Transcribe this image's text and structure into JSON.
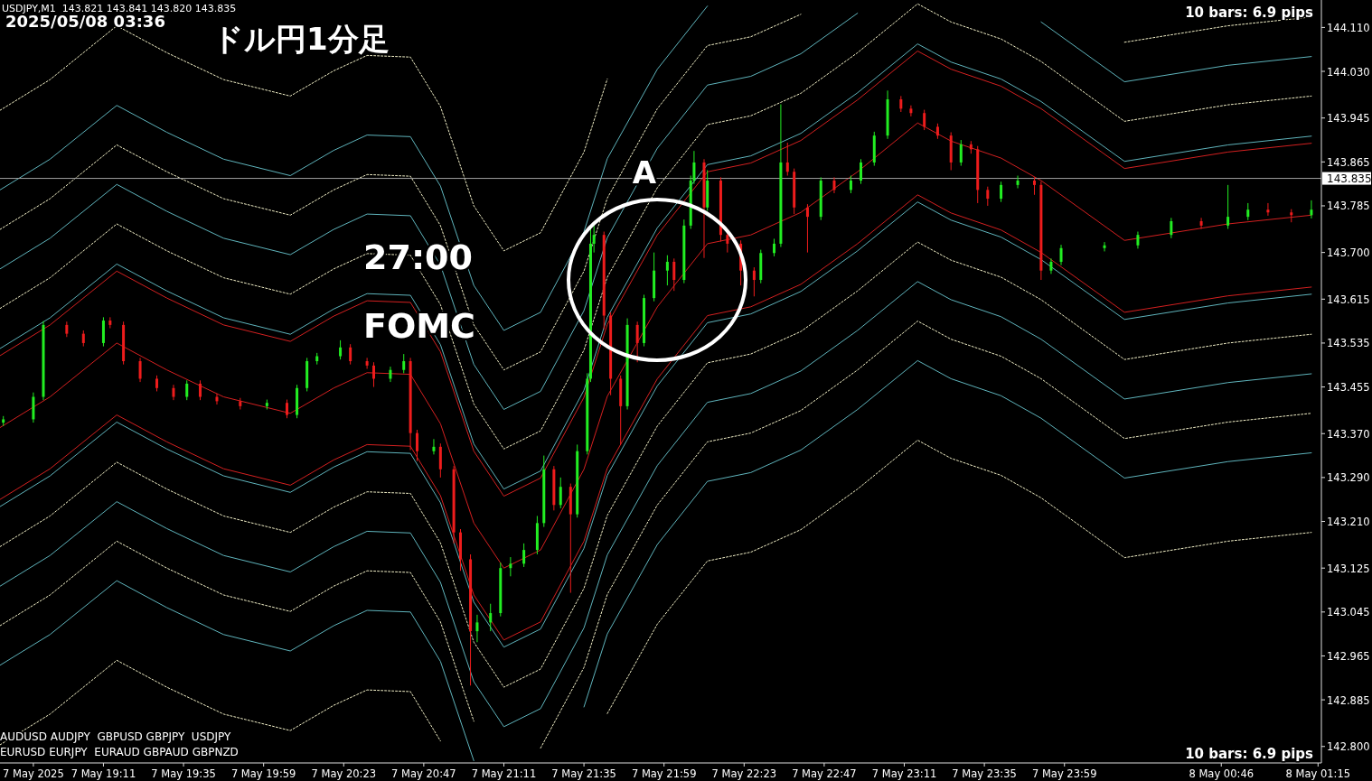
{
  "chart_data": {
    "type": "candlestick",
    "title": "ドル円1分足",
    "annotations": [
      "USDJPY,M1  143.821 143.841 143.820 143.835",
      "2025/05/08 03:36",
      "27:00",
      "FOMC",
      "A",
      "AUDUSD AUDJPY  GBPUSD GBPJPY  USDJPY",
      "EURUSD EURJPY  EURAUD GBPAUD GBPNZD",
      "10 bars: 6.9 pips",
      "10 bars: 6.9 pips"
    ],
    "xlim": [
      "2025-05-07T18:40",
      "2025-05-08T01:16"
    ],
    "ylim": [
      142.77,
      144.16
    ],
    "xticks": [
      {
        "value": "2025-05-07T18:50",
        "label": "7 May 2025"
      },
      {
        "value": "2025-05-07T19:11",
        "label": "7 May 19:11"
      },
      {
        "value": "2025-05-07T19:35",
        "label": "7 May 19:35"
      },
      {
        "value": "2025-05-07T19:59",
        "label": "7 May 19:59"
      },
      {
        "value": "2025-05-07T20:23",
        "label": "7 May 20:23"
      },
      {
        "value": "2025-05-07T20:47",
        "label": "7 May 20:47"
      },
      {
        "value": "2025-05-07T21:11",
        "label": "7 May 21:11"
      },
      {
        "value": "2025-05-07T21:35",
        "label": "7 May 21:35"
      },
      {
        "value": "2025-05-07T21:59",
        "label": "7 May 21:59"
      },
      {
        "value": "2025-05-07T22:23",
        "label": "7 May 22:23"
      },
      {
        "value": "2025-05-07T22:47",
        "label": "7 May 22:47"
      },
      {
        "value": "2025-05-07T23:11",
        "label": "7 May 23:11"
      },
      {
        "value": "2025-05-07T23:35",
        "label": "7 May 23:35"
      },
      {
        "value": "2025-05-07T23:59",
        "label": "7 May 23:59"
      },
      {
        "value": "2025-05-08T00:46",
        "label": "8 May 00:46"
      },
      {
        "value": "2025-05-08T01:15",
        "label": "8 May 01:15"
      }
    ],
    "yticks": [
      {
        "value": 142.8,
        "label": "142.800"
      },
      {
        "value": 142.885,
        "label": "142.885"
      },
      {
        "value": 142.965,
        "label": "142.965"
      },
      {
        "value": 143.045,
        "label": "143.045"
      },
      {
        "value": 143.125,
        "label": "143.125"
      },
      {
        "value": 143.21,
        "label": "143.210"
      },
      {
        "value": 143.29,
        "label": "143.290"
      },
      {
        "value": 143.37,
        "label": "143.370"
      },
      {
        "value": 143.455,
        "label": "143.455"
      },
      {
        "value": 143.535,
        "label": "143.535"
      },
      {
        "value": 143.615,
        "label": "143.615"
      },
      {
        "value": 143.7,
        "label": "143.700"
      },
      {
        "value": 143.785,
        "label": "143.785"
      },
      {
        "value": 143.865,
        "label": "143.865"
      },
      {
        "value": 143.945,
        "label": "143.945"
      },
      {
        "value": 144.03,
        "label": "144.030"
      },
      {
        "value": 144.11,
        "label": "144.110"
      }
    ],
    "ref_lines": [
      {
        "axis": "y",
        "value": 143.835,
        "label": "143.835",
        "color": "#a0a0a0"
      }
    ],
    "x": [
      "2025-05-07T18:41",
      "2025-05-07T18:50",
      "2025-05-07T18:53",
      "2025-05-07T19:00",
      "2025-05-07T19:05",
      "2025-05-07T19:11",
      "2025-05-07T19:13",
      "2025-05-07T19:17",
      "2025-05-07T19:22",
      "2025-05-07T19:27",
      "2025-05-07T19:32",
      "2025-05-07T19:36",
      "2025-05-07T19:40",
      "2025-05-07T19:45",
      "2025-05-07T19:52",
      "2025-05-07T20:00",
      "2025-05-07T20:06",
      "2025-05-07T20:09",
      "2025-05-07T20:12",
      "2025-05-07T20:15",
      "2025-05-07T20:22",
      "2025-05-07T20:25",
      "2025-05-07T20:30",
      "2025-05-07T20:32",
      "2025-05-07T20:37",
      "2025-05-07T20:41",
      "2025-05-07T20:43",
      "2025-05-07T20:45",
      "2025-05-07T20:50",
      "2025-05-07T20:52",
      "2025-05-07T20:56",
      "2025-05-07T20:58",
      "2025-05-07T21:01",
      "2025-05-07T21:03",
      "2025-05-07T21:07",
      "2025-05-07T21:10",
      "2025-05-07T21:13",
      "2025-05-07T21:17",
      "2025-05-07T21:21",
      "2025-05-07T21:23",
      "2025-05-07T21:26",
      "2025-05-07T21:28",
      "2025-05-07T21:31",
      "2025-05-07T21:33",
      "2025-05-07T21:36",
      "2025-05-07T21:37",
      "2025-05-07T21:38",
      "2025-05-07T21:41",
      "2025-05-07T21:43",
      "2025-05-07T21:46",
      "2025-05-07T21:48",
      "2025-05-07T21:51",
      "2025-05-07T21:53",
      "2025-05-07T21:56",
      "2025-05-07T22:00",
      "2025-05-07T22:02",
      "2025-05-07T22:05",
      "2025-05-07T22:07",
      "2025-05-07T22:08",
      "2025-05-07T22:11",
      "2025-05-07T22:12",
      "2025-05-07T22:16",
      "2025-05-07T22:18",
      "2025-05-07T22:22",
      "2025-05-07T22:26",
      "2025-05-07T22:28",
      "2025-05-07T22:32",
      "2025-05-07T22:34",
      "2025-05-07T22:36",
      "2025-05-07T22:38",
      "2025-05-07T22:42",
      "2025-05-07T22:46",
      "2025-05-07T22:50",
      "2025-05-07T22:55",
      "2025-05-07T22:58",
      "2025-05-07T23:02",
      "2025-05-07T23:06",
      "2025-05-07T23:10",
      "2025-05-07T23:13",
      "2025-05-07T23:17",
      "2025-05-07T23:21",
      "2025-05-07T23:25",
      "2025-05-07T23:28",
      "2025-05-07T23:31",
      "2025-05-07T23:33",
      "2025-05-07T23:36",
      "2025-05-07T23:40",
      "2025-05-07T23:45",
      "2025-05-07T23:50",
      "2025-05-07T23:52",
      "2025-05-07T23:55",
      "2025-05-07T23:58",
      "2025-05-08T00:11",
      "2025-05-08T00:21",
      "2025-05-08T00:31",
      "2025-05-08T00:40",
      "2025-05-08T00:48",
      "2025-05-08T00:54",
      "2025-05-08T01:00",
      "2025-05-08T01:07",
      "2025-05-08T01:13"
    ],
    "colors": [
      "#22ee22",
      "#22ee22",
      "#22ee22",
      "#ee1c1c",
      "#ee1c1c",
      "#22ee22",
      "#ee1c1c",
      "#ee1c1c",
      "#ee1c1c",
      "#ee1c1c",
      "#ee1c1c",
      "#22ee22",
      "#ee1c1c",
      "#ee1c1c",
      "#ee1c1c",
      "#22ee22",
      "#ee1c1c",
      "#22ee22",
      "#22ee22",
      "#22ee22",
      "#22ee22",
      "#ee1c1c",
      "#ee1c1c",
      "#ee1c1c",
      "#22ee22",
      "#22ee22",
      "#ee1c1c",
      "#ee1c1c",
      "#22ee22",
      "#ee1c1c",
      "#ee1c1c",
      "#ee1c1c",
      "#ee1c1c",
      "#22ee22",
      "#22ee22",
      "#22ee22",
      "#22ee22",
      "#22ee22",
      "#22ee22",
      "#22ee22",
      "#ee1c1c",
      "#22ee22",
      "#ee1c1c",
      "#22ee22",
      "#22ee22",
      "#22ee22",
      "#22ee22",
      "#ee1c1c",
      "#ee1c1c",
      "#ee1c1c",
      "#22ee22",
      "#ee1c1c",
      "#22ee22",
      "#22ee22",
      "#22ee22",
      "#ee1c1c",
      "#22ee22",
      "#22ee22",
      "#22ee22",
      "#ee1c1c",
      "#22ee22",
      "#ee1c1c",
      "#ee1c1c",
      "#ee1c1c",
      "#ee1c1c",
      "#22ee22",
      "#22ee22",
      "#22ee22",
      "#ee1c1c",
      "#ee1c1c",
      "#ee1c1c",
      "#22ee22",
      "#ee1c1c",
      "#22ee22",
      "#22ee22",
      "#22ee22",
      "#22ee22",
      "#ee1c1c",
      "#ee1c1c",
      "#ee1c1c",
      "#ee1c1c",
      "#ee1c1c",
      "#22ee22",
      "#ee1c1c",
      "#ee1c1c",
      "#ee1c1c",
      "#22ee22",
      "#22ee22",
      "#ee1c1c",
      "#ee1c1c",
      "#22ee22",
      "#22ee22",
      "#22ee22",
      "#22ee22",
      "#22ee22",
      "#ee1c1c",
      "#22ee22",
      "#22ee22",
      "#ee1c1c",
      "#ee1c1c",
      "#22ee22"
    ],
    "ohlc": [
      [
        143.39,
        143.402,
        143.384,
        143.396
      ],
      [
        143.396,
        143.445,
        143.39,
        143.437
      ],
      [
        143.437,
        143.575,
        143.431,
        143.568
      ],
      [
        143.568,
        143.574,
        143.546,
        143.552
      ],
      [
        143.552,
        143.558,
        143.529,
        143.535
      ],
      [
        143.535,
        143.582,
        143.529,
        143.576
      ],
      [
        143.576,
        143.582,
        143.562,
        143.568
      ],
      [
        143.568,
        143.574,
        143.496,
        143.502
      ],
      [
        143.502,
        143.508,
        143.464,
        143.47
      ],
      [
        143.47,
        143.476,
        143.447,
        143.453
      ],
      [
        143.453,
        143.459,
        143.431,
        143.437
      ],
      [
        143.437,
        143.467,
        143.431,
        143.461
      ],
      [
        143.461,
        143.467,
        143.431,
        143.437
      ],
      [
        143.437,
        143.443,
        143.423,
        143.429
      ],
      [
        143.429,
        143.435,
        143.414,
        143.42
      ],
      [
        143.42,
        143.432,
        143.414,
        143.426
      ],
      [
        143.426,
        143.432,
        143.398,
        143.404
      ],
      [
        143.404,
        143.459,
        143.398,
        143.453
      ],
      [
        143.453,
        143.508,
        143.447,
        143.502
      ],
      [
        143.502,
        143.517,
        143.496,
        143.511
      ],
      [
        143.511,
        143.54,
        143.505,
        143.527
      ],
      [
        143.527,
        143.533,
        143.496,
        143.502
      ],
      [
        143.502,
        143.508,
        143.488,
        143.494
      ],
      [
        143.494,
        143.5,
        143.455,
        143.47
      ],
      [
        143.47,
        143.492,
        143.464,
        143.486
      ],
      [
        143.486,
        143.515,
        143.48,
        143.502
      ],
      [
        143.502,
        143.508,
        143.34,
        143.371
      ],
      [
        143.371,
        143.377,
        143.32,
        143.338
      ],
      [
        143.338,
        143.36,
        143.332,
        143.346
      ],
      [
        143.346,
        143.352,
        143.29,
        143.305
      ],
      [
        143.305,
        143.311,
        143.17,
        143.19
      ],
      [
        143.19,
        143.196,
        143.12,
        143.141
      ],
      [
        143.141,
        143.15,
        142.911,
        143.01
      ],
      [
        143.01,
        143.04,
        142.99,
        143.026
      ],
      [
        143.026,
        143.06,
        143.01,
        143.043
      ],
      [
        143.043,
        143.135,
        143.037,
        143.125
      ],
      [
        143.125,
        143.145,
        143.11,
        143.133
      ],
      [
        143.133,
        143.17,
        143.127,
        143.158
      ],
      [
        143.158,
        143.22,
        143.15,
        143.207
      ],
      [
        143.207,
        143.33,
        143.2,
        143.305
      ],
      [
        143.305,
        143.311,
        143.23,
        143.24
      ],
      [
        143.24,
        143.29,
        143.234,
        143.273
      ],
      [
        143.273,
        143.279,
        143.08,
        143.223
      ],
      [
        143.223,
        143.35,
        143.217,
        143.338
      ],
      [
        143.338,
        143.48,
        143.332,
        143.47
      ],
      [
        143.47,
        143.745,
        143.464,
        143.716
      ],
      [
        143.716,
        143.75,
        143.7,
        143.732
      ],
      [
        143.732,
        143.738,
        143.56,
        143.585
      ],
      [
        143.585,
        143.591,
        143.44,
        143.47
      ],
      [
        143.47,
        143.476,
        143.35,
        143.42
      ],
      [
        143.42,
        143.58,
        143.414,
        143.568
      ],
      [
        143.568,
        143.574,
        143.5,
        143.535
      ],
      [
        143.535,
        143.623,
        143.529,
        143.617
      ],
      [
        143.617,
        143.7,
        143.611,
        143.667
      ],
      [
        143.667,
        143.695,
        143.64,
        143.683
      ],
      [
        143.683,
        143.689,
        143.63,
        143.65
      ],
      [
        143.65,
        143.76,
        143.644,
        143.749
      ],
      [
        143.749,
        143.84,
        143.743,
        143.831
      ],
      [
        143.831,
        143.885,
        143.825,
        143.864
      ],
      [
        143.864,
        143.87,
        143.69,
        143.782
      ],
      [
        143.782,
        143.85,
        143.776,
        143.831
      ],
      [
        143.831,
        143.837,
        143.72,
        143.732
      ],
      [
        143.732,
        143.738,
        143.7,
        143.716
      ],
      [
        143.716,
        143.722,
        143.64,
        143.667
      ],
      [
        143.667,
        143.673,
        143.62,
        143.65
      ],
      [
        143.65,
        143.705,
        143.644,
        143.699
      ],
      [
        143.699,
        143.725,
        143.693,
        143.716
      ],
      [
        143.716,
        143.97,
        143.71,
        143.864
      ],
      [
        143.864,
        143.9,
        143.84,
        143.847
      ],
      [
        143.847,
        143.853,
        143.77,
        143.782
      ],
      [
        143.782,
        143.788,
        143.7,
        143.765
      ],
      [
        143.765,
        143.837,
        143.759,
        143.831
      ],
      [
        143.831,
        143.837,
        143.808,
        143.814
      ],
      [
        143.814,
        143.84,
        143.808,
        143.831
      ],
      [
        143.831,
        143.87,
        143.825,
        143.864
      ],
      [
        143.864,
        143.92,
        143.858,
        143.913
      ],
      [
        143.913,
        143.995,
        143.907,
        143.979
      ],
      [
        143.979,
        143.985,
        143.956,
        143.962
      ],
      [
        143.962,
        143.968,
        143.948,
        143.954
      ],
      [
        143.954,
        143.96,
        143.923,
        143.929
      ],
      [
        143.929,
        143.935,
        143.907,
        143.913
      ],
      [
        143.913,
        143.919,
        143.85,
        143.864
      ],
      [
        143.864,
        143.905,
        143.858,
        143.897
      ],
      [
        143.897,
        143.903,
        143.88,
        143.888
      ],
      [
        143.888,
        143.894,
        143.79,
        143.814
      ],
      [
        143.814,
        143.82,
        143.785,
        143.798
      ],
      [
        143.798,
        143.829,
        143.792,
        143.823
      ],
      [
        143.823,
        143.84,
        143.817,
        143.831
      ],
      [
        143.831,
        143.837,
        143.805,
        143.823
      ],
      [
        143.823,
        143.829,
        143.65,
        143.667
      ],
      [
        143.667,
        143.689,
        143.661,
        143.683
      ],
      [
        143.683,
        143.714,
        143.677,
        143.708
      ],
      [
        143.708,
        143.719,
        143.702,
        143.713
      ],
      [
        143.713,
        143.738,
        143.707,
        143.732
      ],
      [
        143.732,
        143.763,
        143.726,
        143.757
      ],
      [
        143.757,
        143.763,
        143.743,
        143.749
      ],
      [
        143.749,
        143.823,
        143.743,
        143.765
      ],
      [
        143.765,
        143.79,
        143.759,
        143.778
      ],
      [
        143.778,
        143.79,
        143.767,
        143.773
      ],
      [
        143.773,
        143.779,
        143.755,
        143.768
      ],
      [
        143.768,
        143.795,
        143.762,
        143.778
      ]
    ],
    "series": [
      {
        "type": "line",
        "color": "#d42020",
        "line_style": "solid",
        "x": [
          "2025-05-07T18:40",
          "2025-05-07T18:55",
          "2025-05-07T19:15",
          "2025-05-07T19:30",
          "2025-05-07T19:47",
          "2025-05-07T20:07",
          "2025-05-07T20:20",
          "2025-05-07T20:30",
          "2025-05-07T20:43",
          "2025-05-07T20:52",
          "2025-05-07T21:02",
          "2025-05-07T21:11",
          "2025-05-07T21:22",
          "2025-05-07T21:35",
          "2025-05-07T21:42",
          "2025-05-07T21:57",
          "2025-05-07T22:12",
          "2025-05-07T22:25",
          "2025-05-07T22:40",
          "2025-05-07T22:57",
          "2025-05-07T23:15",
          "2025-05-07T23:25",
          "2025-05-07T23:40",
          "2025-05-07T23:52",
          "2025-05-08T00:17",
          "2025-05-08T00:48",
          "2025-05-08T01:13"
        ],
        "values": [
          143.381,
          143.437,
          143.535,
          143.486,
          143.437,
          143.407,
          143.453,
          143.481,
          143.478,
          143.388,
          143.207,
          143.125,
          143.158,
          143.305,
          143.438,
          143.601,
          143.716,
          143.732,
          143.773,
          143.847,
          143.936,
          143.903,
          143.872,
          143.831,
          143.722,
          143.752,
          143.768
        ]
      },
      {
        "type": "line",
        "color": "#d42020",
        "line_style": "solid",
        "x": [
          "2025-05-07T18:40",
          "2025-05-07T18:55",
          "2025-05-07T19:15",
          "2025-05-07T19:30",
          "2025-05-07T19:47",
          "2025-05-07T20:07",
          "2025-05-07T20:20",
          "2025-05-07T20:30",
          "2025-05-07T20:43",
          "2025-05-07T20:52",
          "2025-05-07T21:02",
          "2025-05-07T21:11",
          "2025-05-07T21:22",
          "2025-05-07T21:35",
          "2025-05-07T21:42",
          "2025-05-07T21:57",
          "2025-05-07T22:12",
          "2025-05-07T22:25",
          "2025-05-07T22:40",
          "2025-05-07T22:57",
          "2025-05-07T23:15",
          "2025-05-07T23:25",
          "2025-05-07T23:40",
          "2025-05-07T23:52",
          "2025-05-08T00:17",
          "2025-05-08T00:48",
          "2025-05-08T01:13"
        ],
        "values": [
          143.512,
          143.568,
          143.666,
          143.617,
          143.568,
          143.538,
          143.584,
          143.612,
          143.609,
          143.519,
          143.338,
          143.256,
          143.289,
          143.436,
          143.569,
          143.732,
          143.847,
          143.863,
          143.904,
          143.978,
          144.067,
          144.034,
          144.003,
          143.962,
          143.853,
          143.883,
          143.899
        ]
      },
      {
        "type": "line",
        "color": "#d42020",
        "line_style": "solid",
        "x": [
          "2025-05-07T18:40",
          "2025-05-07T18:55",
          "2025-05-07T19:15",
          "2025-05-07T19:30",
          "2025-05-07T19:47",
          "2025-05-07T20:07",
          "2025-05-07T20:20",
          "2025-05-07T20:30",
          "2025-05-07T20:43",
          "2025-05-07T20:52",
          "2025-05-07T21:02",
          "2025-05-07T21:11",
          "2025-05-07T21:22",
          "2025-05-07T21:35",
          "2025-05-07T21:42",
          "2025-05-07T21:57",
          "2025-05-07T22:12",
          "2025-05-07T22:25",
          "2025-05-07T22:40",
          "2025-05-07T22:57",
          "2025-05-07T23:15",
          "2025-05-07T23:25",
          "2025-05-07T23:40",
          "2025-05-07T23:52",
          "2025-05-08T00:17",
          "2025-05-08T00:48",
          "2025-05-08T01:13"
        ],
        "values": [
          143.25,
          143.306,
          143.404,
          143.355,
          143.306,
          143.276,
          143.322,
          143.35,
          143.347,
          143.257,
          143.076,
          142.994,
          143.027,
          143.174,
          143.307,
          143.47,
          143.585,
          143.601,
          143.642,
          143.716,
          143.805,
          143.772,
          143.741,
          143.7,
          143.591,
          143.621,
          143.637
        ]
      },
      {
        "type": "line",
        "color": "#5fb4bc",
        "line_style": "solid",
        "x": [
          "2025-05-07T18:40",
          "2025-05-07T18:55",
          "2025-05-07T19:15",
          "2025-05-07T19:30",
          "2025-05-07T19:47",
          "2025-05-07T20:07",
          "2025-05-07T20:20",
          "2025-05-07T20:30",
          "2025-05-07T20:43",
          "2025-05-07T20:52",
          "2025-05-07T21:02",
          "2025-05-07T21:11",
          "2025-05-07T21:22",
          "2025-05-07T21:35",
          "2025-05-07T21:42",
          "2025-05-07T21:57",
          "2025-05-07T22:12",
          "2025-05-07T22:25",
          "2025-05-07T22:40",
          "2025-05-07T22:57",
          "2025-05-07T23:15",
          "2025-05-07T23:25",
          "2025-05-07T23:40",
          "2025-05-07T23:52",
          "2025-05-08T00:17",
          "2025-05-08T00:48",
          "2025-05-08T01:13"
        ],
        "values": [
          143.525,
          143.581,
          143.679,
          143.63,
          143.581,
          143.551,
          143.597,
          143.625,
          143.622,
          143.532,
          143.351,
          143.269,
          143.302,
          143.449,
          143.582,
          143.745,
          143.86,
          143.876,
          143.917,
          143.991,
          144.08,
          144.047,
          144.016,
          143.975,
          143.866,
          143.896,
          143.912
        ]
      },
      {
        "type": "line",
        "color": "#5fb4bc",
        "line_style": "solid",
        "x": [
          "2025-05-07T18:40",
          "2025-05-07T18:55",
          "2025-05-07T19:15",
          "2025-05-07T19:30",
          "2025-05-07T19:47",
          "2025-05-07T20:07",
          "2025-05-07T20:20",
          "2025-05-07T20:30",
          "2025-05-07T20:43",
          "2025-05-07T20:52",
          "2025-05-07T21:02",
          "2025-05-07T21:11",
          "2025-05-07T21:22",
          "2025-05-07T21:35",
          "2025-05-07T21:42",
          "2025-05-07T21:57",
          "2025-05-07T22:12",
          "2025-05-07T22:25",
          "2025-05-07T22:40",
          "2025-05-07T22:57",
          "2025-05-07T23:15",
          "2025-05-07T23:25",
          "2025-05-07T23:40",
          "2025-05-07T23:52",
          "2025-05-08T00:17",
          "2025-05-08T00:48",
          "2025-05-08T01:13"
        ],
        "values": [
          143.237,
          143.293,
          143.391,
          143.342,
          143.293,
          143.263,
          143.309,
          143.337,
          143.334,
          143.244,
          143.063,
          142.981,
          143.014,
          143.161,
          143.294,
          143.457,
          143.572,
          143.588,
          143.629,
          143.703,
          143.792,
          143.759,
          143.728,
          143.687,
          143.578,
          143.608,
          143.624
        ]
      },
      {
        "type": "line",
        "color": "#f2f0c8",
        "line_style": "dotted",
        "x": [
          "2025-05-07T18:40",
          "2025-05-07T18:55",
          "2025-05-07T19:15",
          "2025-05-07T19:30",
          "2025-05-07T19:47",
          "2025-05-07T20:07",
          "2025-05-07T20:20",
          "2025-05-07T20:30",
          "2025-05-07T20:43",
          "2025-05-07T20:52",
          "2025-05-07T21:02",
          "2025-05-07T21:11",
          "2025-05-07T21:22",
          "2025-05-07T21:35",
          "2025-05-07T21:42",
          "2025-05-07T21:57",
          "2025-05-07T22:12",
          "2025-05-07T22:25",
          "2025-05-07T22:40",
          "2025-05-07T22:57",
          "2025-05-07T23:15",
          "2025-05-07T23:25",
          "2025-05-07T23:40",
          "2025-05-07T23:52",
          "2025-05-08T00:17",
          "2025-05-08T00:48",
          "2025-05-08T01:13"
        ],
        "values": [
          143.598,
          143.654,
          143.752,
          143.703,
          143.654,
          143.624,
          143.67,
          143.698,
          143.695,
          143.605,
          143.424,
          143.342,
          143.375,
          143.522,
          143.655,
          143.818,
          143.933,
          143.949,
          143.99,
          144.064,
          144.153,
          144.12,
          144.089,
          144.048,
          143.939,
          143.969,
          143.985
        ]
      },
      {
        "type": "line",
        "color": "#f2f0c8",
        "line_style": "dotted",
        "x": [
          "2025-05-07T18:40",
          "2025-05-07T18:55",
          "2025-05-07T19:15",
          "2025-05-07T19:30",
          "2025-05-07T19:47",
          "2025-05-07T20:07",
          "2025-05-07T20:20",
          "2025-05-07T20:30",
          "2025-05-07T20:43",
          "2025-05-07T20:52",
          "2025-05-07T21:02",
          "2025-05-07T21:11",
          "2025-05-07T21:22",
          "2025-05-07T21:35",
          "2025-05-07T21:42",
          "2025-05-07T21:57",
          "2025-05-07T22:12",
          "2025-05-07T22:25",
          "2025-05-07T22:40",
          "2025-05-07T22:57",
          "2025-05-07T23:15",
          "2025-05-07T23:25",
          "2025-05-07T23:40",
          "2025-05-07T23:52",
          "2025-05-08T00:17",
          "2025-05-08T00:48",
          "2025-05-08T01:13"
        ],
        "values": [
          143.164,
          143.22,
          143.318,
          143.269,
          143.22,
          143.19,
          143.236,
          143.264,
          143.261,
          143.171,
          142.99,
          142.908,
          142.941,
          143.088,
          143.221,
          143.384,
          143.499,
          143.515,
          143.556,
          143.63,
          143.719,
          143.686,
          143.655,
          143.614,
          143.505,
          143.535,
          143.551
        ]
      },
      {
        "type": "line",
        "color": "#5fb4bc",
        "line_style": "solid",
        "x": [
          "2025-05-07T18:40",
          "2025-05-07T18:55",
          "2025-05-07T19:15",
          "2025-05-07T19:30",
          "2025-05-07T19:47",
          "2025-05-07T20:07",
          "2025-05-07T20:20",
          "2025-05-07T20:30",
          "2025-05-07T20:43",
          "2025-05-07T20:52",
          "2025-05-07T21:02",
          "2025-05-07T21:11",
          "2025-05-07T21:22",
          "2025-05-07T21:35",
          "2025-05-07T21:42",
          "2025-05-07T21:57",
          "2025-05-07T22:12",
          "2025-05-07T22:25",
          "2025-05-07T22:40",
          "2025-05-07T22:57",
          "2025-05-07T23:15",
          "2025-05-07T23:25",
          "2025-05-07T23:40",
          "2025-05-07T23:52",
          "2025-05-08T00:17",
          "2025-05-08T00:48",
          "2025-05-08T01:13"
        ],
        "values": [
          143.67,
          143.726,
          143.824,
          143.775,
          143.726,
          143.696,
          143.742,
          143.77,
          143.767,
          143.677,
          143.496,
          143.414,
          143.447,
          143.594,
          143.727,
          143.89,
          144.005,
          144.021,
          144.062,
          144.136,
          null,
          null,
          null,
          144.12,
          144.011,
          144.041,
          144.057
        ]
      },
      {
        "type": "line",
        "color": "#5fb4bc",
        "line_style": "solid",
        "x": [
          "2025-05-07T18:40",
          "2025-05-07T18:55",
          "2025-05-07T19:15",
          "2025-05-07T19:30",
          "2025-05-07T19:47",
          "2025-05-07T20:07",
          "2025-05-07T20:20",
          "2025-05-07T20:30",
          "2025-05-07T20:43",
          "2025-05-07T20:52",
          "2025-05-07T21:02",
          "2025-05-07T21:11",
          "2025-05-07T21:22",
          "2025-05-07T21:35",
          "2025-05-07T21:42",
          "2025-05-07T21:57",
          "2025-05-07T22:12",
          "2025-05-07T22:25",
          "2025-05-07T22:40",
          "2025-05-07T22:57",
          "2025-05-07T23:15",
          "2025-05-07T23:25",
          "2025-05-07T23:40",
          "2025-05-07T23:52",
          "2025-05-08T00:17",
          "2025-05-08T00:48",
          "2025-05-08T01:13"
        ],
        "values": [
          143.092,
          143.148,
          143.246,
          143.197,
          143.148,
          143.118,
          143.164,
          143.192,
          143.189,
          143.099,
          142.918,
          142.836,
          142.869,
          143.016,
          143.149,
          143.312,
          143.427,
          143.443,
          143.484,
          143.558,
          143.647,
          143.614,
          143.583,
          143.542,
          143.433,
          143.463,
          143.479
        ]
      },
      {
        "type": "line",
        "color": "#f2f0c8",
        "line_style": "dotted",
        "x": [
          "2025-05-07T18:40",
          "2025-05-07T18:55",
          "2025-05-07T19:15",
          "2025-05-07T19:30",
          "2025-05-07T19:47",
          "2025-05-07T20:07",
          "2025-05-07T20:20",
          "2025-05-07T20:30",
          "2025-05-07T20:43",
          "2025-05-07T20:52",
          "2025-05-07T21:02",
          "2025-05-07T21:11",
          "2025-05-07T21:22",
          "2025-05-07T21:35",
          "2025-05-07T21:42",
          "2025-05-07T21:57",
          "2025-05-07T22:12",
          "2025-05-07T22:25",
          "2025-05-07T22:40",
          "2025-05-07T22:57",
          "2025-05-07T23:15",
          "2025-05-07T23:25",
          "2025-05-07T23:40",
          "2025-05-07T23:52",
          "2025-05-08T00:17",
          "2025-05-08T00:48",
          "2025-05-08T01:13"
        ],
        "values": [
          143.742,
          143.798,
          143.896,
          143.847,
          143.798,
          143.768,
          143.814,
          143.842,
          143.839,
          143.749,
          143.568,
          143.486,
          143.519,
          143.666,
          143.799,
          143.962,
          144.077,
          144.093,
          144.134,
          null,
          null,
          null,
          null,
          null,
          144.083,
          144.113,
          144.129
        ]
      },
      {
        "type": "line",
        "color": "#f2f0c8",
        "line_style": "dotted",
        "x": [
          "2025-05-07T18:40",
          "2025-05-07T18:55",
          "2025-05-07T19:15",
          "2025-05-07T19:30",
          "2025-05-07T19:47",
          "2025-05-07T20:07",
          "2025-05-07T20:20",
          "2025-05-07T20:30",
          "2025-05-07T20:43",
          "2025-05-07T20:52",
          "2025-05-07T21:02",
          "2025-05-07T21:11",
          "2025-05-07T21:22",
          "2025-05-07T21:35",
          "2025-05-07T21:42",
          "2025-05-07T21:57",
          "2025-05-07T22:12",
          "2025-05-07T22:25",
          "2025-05-07T22:40",
          "2025-05-07T22:57",
          "2025-05-07T23:15",
          "2025-05-07T23:25",
          "2025-05-07T23:40",
          "2025-05-07T23:52",
          "2025-05-08T00:17",
          "2025-05-08T00:48",
          "2025-05-08T01:13"
        ],
        "values": [
          143.02,
          143.076,
          143.174,
          143.125,
          143.076,
          143.046,
          143.092,
          143.12,
          143.117,
          143.027,
          142.846,
          null,
          142.797,
          142.944,
          143.077,
          143.24,
          143.355,
          143.371,
          143.412,
          143.486,
          143.575,
          143.542,
          143.511,
          143.47,
          143.361,
          143.391,
          143.407
        ]
      },
      {
        "type": "line",
        "color": "#5fb4bc",
        "line_style": "solid",
        "x": [
          "2025-05-07T18:40",
          "2025-05-07T18:55",
          "2025-05-07T19:15",
          "2025-05-07T19:30",
          "2025-05-07T19:47",
          "2025-05-07T20:07",
          "2025-05-07T20:20",
          "2025-05-07T20:30",
          "2025-05-07T20:43",
          "2025-05-07T20:52",
          "2025-05-07T21:02",
          "2025-05-07T21:11",
          "2025-05-07T21:22",
          "2025-05-07T21:35",
          "2025-05-07T21:42",
          "2025-05-07T21:57",
          "2025-05-07T22:12"
        ],
        "values": [
          143.814,
          143.87,
          143.968,
          143.919,
          143.87,
          143.84,
          143.886,
          143.914,
          143.911,
          143.821,
          143.64,
          143.558,
          143.591,
          143.738,
          143.871,
          144.034,
          144.149
        ]
      },
      {
        "type": "line",
        "color": "#5fb4bc",
        "line_style": "solid",
        "x": [
          "2025-05-07T18:40",
          "2025-05-07T18:55",
          "2025-05-07T19:15",
          "2025-05-07T19:30",
          "2025-05-07T19:47",
          "2025-05-07T20:07",
          "2025-05-07T20:20",
          "2025-05-07T20:30",
          "2025-05-07T20:43",
          "2025-05-07T20:52",
          "2025-05-07T21:02",
          "2025-05-07T21:11",
          "2025-05-07T21:22",
          "2025-05-07T21:35",
          "2025-05-07T21:42",
          "2025-05-07T21:57",
          "2025-05-07T22:12",
          "2025-05-07T22:25",
          "2025-05-07T22:40",
          "2025-05-07T22:57",
          "2025-05-07T23:15",
          "2025-05-07T23:25",
          "2025-05-07T23:40",
          "2025-05-07T23:52",
          "2025-05-08T00:17",
          "2025-05-08T00:48",
          "2025-05-08T01:13"
        ],
        "values": [
          142.948,
          143.004,
          143.102,
          143.053,
          143.004,
          142.974,
          143.02,
          143.048,
          143.045,
          142.955,
          142.774,
          null,
          null,
          142.872,
          143.005,
          143.168,
          143.283,
          143.299,
          143.34,
          143.414,
          143.503,
          143.47,
          143.439,
          143.398,
          143.289,
          143.319,
          143.335
        ]
      },
      {
        "type": "line",
        "color": "#f2f0c8",
        "line_style": "dotted",
        "x": [
          "2025-05-07T18:40",
          "2025-05-07T18:55",
          "2025-05-07T19:15",
          "2025-05-07T19:30",
          "2025-05-07T19:47",
          "2025-05-07T20:07",
          "2025-05-07T20:20",
          "2025-05-07T20:30",
          "2025-05-07T20:43",
          "2025-05-07T20:52",
          "2025-05-07T21:02",
          "2025-05-07T21:11",
          "2025-05-07T21:22",
          "2025-05-07T21:35",
          "2025-05-07T21:42"
        ],
        "values": [
          143.959,
          144.015,
          144.113,
          144.064,
          144.015,
          143.985,
          144.031,
          144.059,
          144.056,
          143.966,
          143.785,
          143.703,
          143.736,
          143.883,
          144.016
        ]
      },
      {
        "type": "line",
        "color": "#f2f0c8",
        "line_style": "dotted",
        "x": [
          "2025-05-07T18:40",
          "2025-05-07T18:55",
          "2025-05-07T19:15",
          "2025-05-07T19:30",
          "2025-05-07T19:47",
          "2025-05-07T20:07",
          "2025-05-07T20:20",
          "2025-05-07T20:30",
          "2025-05-07T20:43",
          "2025-05-07T20:52",
          "2025-05-07T21:02",
          "2025-05-07T21:11",
          "2025-05-07T21:22",
          "2025-05-07T21:35",
          "2025-05-07T21:42",
          "2025-05-07T21:57",
          "2025-05-07T22:12",
          "2025-05-07T22:25",
          "2025-05-07T22:40",
          "2025-05-07T22:57",
          "2025-05-07T23:15",
          "2025-05-07T23:25",
          "2025-05-07T23:40",
          "2025-05-07T23:52",
          "2025-05-08T00:17",
          "2025-05-08T00:48",
          "2025-05-08T01:13"
        ],
        "values": [
          142.803,
          142.859,
          142.957,
          142.908,
          142.859,
          142.829,
          142.875,
          142.903,
          142.9,
          142.81,
          null,
          null,
          null,
          null,
          142.86,
          143.023,
          143.138,
          143.154,
          143.195,
          143.269,
          143.358,
          143.325,
          143.294,
          143.253,
          143.144,
          143.174,
          143.19
        ]
      }
    ]
  }
}
